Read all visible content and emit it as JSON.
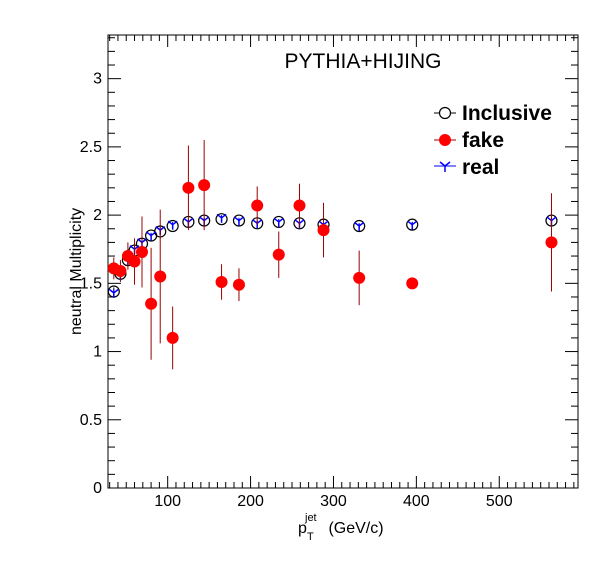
{
  "chart_data": {
    "type": "scatter",
    "title": "PYTHIA+HIJING",
    "xlabel": {
      "main": "p",
      "sub": "T",
      "sup": "jet",
      "unit": " (GeV/c)"
    },
    "ylabel": "neutral Multiplicity",
    "xlim": [
      28,
      595
    ],
    "ylim": [
      0,
      3.32
    ],
    "x_ticks": [
      100,
      200,
      300,
      400,
      500
    ],
    "x_tick_labels": [
      "100",
      "200",
      "300",
      "400",
      "500"
    ],
    "y_ticks": [
      0,
      0.5,
      1,
      1.5,
      2,
      2.5,
      3
    ],
    "y_tick_labels": [
      "0",
      "0.5",
      "1",
      "1.5",
      "2",
      "2.5",
      "3"
    ],
    "grid": false,
    "legend_position": "top-right",
    "series": [
      {
        "name": "Inclusive",
        "marker": "open-circle",
        "color": "#000000",
        "points": [
          {
            "x": 35,
            "y": 1.44,
            "err": 0.03
          },
          {
            "x": 43,
            "y": 1.57,
            "err": 0.03
          },
          {
            "x": 52,
            "y": 1.67,
            "err": 0.02
          },
          {
            "x": 60,
            "y": 1.74,
            "err": 0.02
          },
          {
            "x": 69,
            "y": 1.79,
            "err": 0.02
          },
          {
            "x": 80,
            "y": 1.85,
            "err": 0.02
          },
          {
            "x": 91,
            "y": 1.88,
            "err": 0.02
          },
          {
            "x": 106,
            "y": 1.92,
            "err": 0.02
          },
          {
            "x": 125,
            "y": 1.95,
            "err": 0.02
          },
          {
            "x": 144,
            "y": 1.96,
            "err": 0.02
          },
          {
            "x": 165,
            "y": 1.97,
            "err": 0.02
          },
          {
            "x": 186,
            "y": 1.96,
            "err": 0.02
          },
          {
            "x": 208,
            "y": 1.94,
            "err": 0.02
          },
          {
            "x": 234,
            "y": 1.95,
            "err": 0.02
          },
          {
            "x": 259,
            "y": 1.94,
            "err": 0.02
          },
          {
            "x": 288,
            "y": 1.93,
            "err": 0.02
          },
          {
            "x": 331,
            "y": 1.92,
            "err": 0.02
          },
          {
            "x": 395,
            "y": 1.93,
            "err": 0.02
          },
          {
            "x": 563,
            "y": 1.96,
            "err": 0.03
          }
        ]
      },
      {
        "name": "fake",
        "marker": "filled-circle",
        "color": "#ff0000",
        "errcolor": "#990000",
        "points": [
          {
            "x": 35,
            "y": 1.61,
            "err": 0.08
          },
          {
            "x": 43,
            "y": 1.59,
            "err": 0.08
          },
          {
            "x": 52,
            "y": 1.7,
            "err": 0.1
          },
          {
            "x": 60,
            "y": 1.66,
            "err": 0.17
          },
          {
            "x": 69,
            "y": 1.73,
            "err": 0.26
          },
          {
            "x": 80,
            "y": 1.35,
            "err": 0.41
          },
          {
            "x": 91,
            "y": 1.55,
            "err": 0.49
          },
          {
            "x": 106,
            "y": 1.1,
            "err": 0.23
          },
          {
            "x": 125,
            "y": 2.2,
            "err": 0.31
          },
          {
            "x": 144,
            "y": 2.22,
            "err": 0.33
          },
          {
            "x": 165,
            "y": 1.51,
            "err": 0.13
          },
          {
            "x": 186,
            "y": 1.49,
            "err": 0.12
          },
          {
            "x": 208,
            "y": 2.07,
            "err": 0.14
          },
          {
            "x": 234,
            "y": 1.71,
            "err": 0.17
          },
          {
            "x": 259,
            "y": 2.07,
            "err": 0.16
          },
          {
            "x": 288,
            "y": 1.89,
            "err": 0.2
          },
          {
            "x": 331,
            "y": 1.54,
            "err": 0.2
          },
          {
            "x": 395,
            "y": 1.5,
            "err": 0.0
          },
          {
            "x": 563,
            "y": 1.8,
            "err": 0.36
          }
        ]
      },
      {
        "name": "real",
        "marker": "tri-star",
        "color": "#0000ff",
        "points": [
          {
            "x": 35,
            "y": 1.43,
            "err": 0.03
          },
          {
            "x": 43,
            "y": 1.56,
            "err": 0.03
          },
          {
            "x": 52,
            "y": 1.67,
            "err": 0.02
          },
          {
            "x": 60,
            "y": 1.75,
            "err": 0.02
          },
          {
            "x": 69,
            "y": 1.8,
            "err": 0.02
          },
          {
            "x": 80,
            "y": 1.85,
            "err": 0.02
          },
          {
            "x": 91,
            "y": 1.89,
            "err": 0.02
          },
          {
            "x": 106,
            "y": 1.93,
            "err": 0.02
          },
          {
            "x": 125,
            "y": 1.95,
            "err": 0.02
          },
          {
            "x": 144,
            "y": 1.96,
            "err": 0.02
          },
          {
            "x": 165,
            "y": 1.98,
            "err": 0.02
          },
          {
            "x": 186,
            "y": 1.96,
            "err": 0.02
          },
          {
            "x": 208,
            "y": 1.94,
            "err": 0.02
          },
          {
            "x": 234,
            "y": 1.95,
            "err": 0.02
          },
          {
            "x": 259,
            "y": 1.94,
            "err": 0.02
          },
          {
            "x": 288,
            "y": 1.93,
            "err": 0.02
          },
          {
            "x": 331,
            "y": 1.92,
            "err": 0.02
          },
          {
            "x": 395,
            "y": 1.93,
            "err": 0.02
          },
          {
            "x": 563,
            "y": 1.96,
            "err": 0.03
          }
        ]
      }
    ]
  }
}
